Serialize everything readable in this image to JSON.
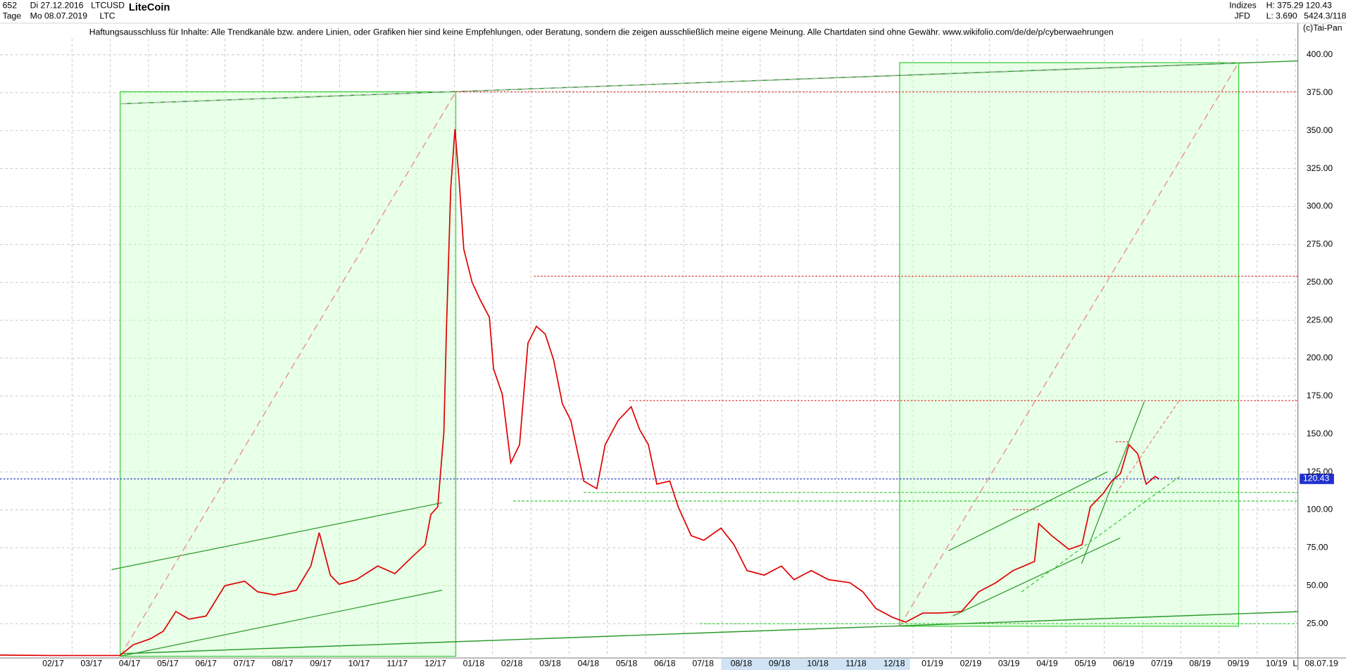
{
  "header": {
    "count": "652",
    "start": "Di 27.12.2016",
    "period": "Tage",
    "end": "Mo 08.07.2019",
    "symbol": "LTCUSD",
    "symbol_short": "LTC",
    "name": "LiteCoin",
    "disclaimer": "Haftungsausschluss für Inhalte: Alle Trendkanäle bzw. andere Linien, oder Grafiken hier sind keine Empfehlungen, oder Beratung, sondern die zeigen ausschließlich meine eigene Meinung. Alle Chartdaten sind ohne Gewähr.  www.wikifolio.com/de/de/p/cyberwaehrungen",
    "market": "Indizes",
    "broker": "JFD",
    "high": "H: 375.29",
    "low": "L: 3.690",
    "last": "120.43",
    "extra": "5424.3/118",
    "copyright": "(c)Tai-Pan",
    "date_label": "08.07.19",
    "scale_mark": "L"
  },
  "chart_data": {
    "type": "line",
    "current_value": 120.43,
    "current_label": "120.43",
    "grid": true,
    "series": [
      {
        "name": "LTCUSD",
        "color": "#e00000",
        "x": [
          0.11,
          1.46,
          2.8,
          3.25,
          3.59,
          4.04,
          4.38,
          4.71,
          5.05,
          5.5,
          5.99,
          6.51,
          6.85,
          7.29,
          7.86,
          8.24,
          8.46,
          8.75,
          8.98,
          9.43,
          9.99,
          10.44,
          10.89,
          11.23,
          11.38,
          11.56,
          11.72,
          11.79,
          11.9,
          12.01,
          12.12,
          12.24,
          12.46,
          12.68,
          12.91,
          13.02,
          13.25,
          13.47,
          13.7,
          13.92,
          14.14,
          14.37,
          14.59,
          14.82,
          15.04,
          15.38,
          15.72,
          15.94,
          16.28,
          16.62,
          16.84,
          17.07,
          17.29,
          17.63,
          17.85,
          18.19,
          18.52,
          18.97,
          19.31,
          19.65,
          20.1,
          20.55,
          20.88,
          21.33,
          21.78,
          22.34,
          22.68,
          23.02,
          23.47,
          23.8,
          24.25,
          24.7,
          25.26,
          25.71,
          26.16,
          26.61,
          27.17,
          27.28,
          27.62,
          28.07,
          28.41,
          28.63,
          28.97,
          29.19,
          29.42,
          29.64,
          29.87,
          30.09,
          30.32,
          30.43
        ],
        "values": [
          4.3,
          4,
          4,
          4,
          11,
          15,
          20,
          33,
          28,
          30,
          50,
          53,
          46,
          44,
          47,
          63,
          85,
          57,
          51,
          54,
          63,
          58,
          69,
          77,
          97,
          102,
          151,
          221,
          312,
          351,
          317,
          272,
          250,
          238,
          227,
          193,
          176,
          131,
          143,
          210,
          221,
          216,
          199,
          170,
          159,
          119,
          114,
          143,
          159,
          168,
          153,
          143,
          117,
          119,
          102,
          83,
          80,
          88,
          77,
          60,
          57,
          63,
          54,
          60,
          54,
          52,
          46,
          35,
          29,
          26,
          32,
          32,
          33,
          46,
          52,
          60,
          66,
          91,
          83,
          74,
          77,
          102,
          111,
          119,
          124,
          143,
          137,
          117,
          122,
          120.43
        ]
      }
    ],
    "xlim": [
      0.11,
      34.06
    ],
    "xticks": [
      {
        "value": 1.5,
        "label": "02/17"
      },
      {
        "value": 2.5,
        "label": "03/17"
      },
      {
        "value": 3.5,
        "label": "04/17"
      },
      {
        "value": 4.5,
        "label": "05/17"
      },
      {
        "value": 5.5,
        "label": "06/17"
      },
      {
        "value": 6.5,
        "label": "07/17"
      },
      {
        "value": 7.5,
        "label": "08/17"
      },
      {
        "value": 8.5,
        "label": "09/17"
      },
      {
        "value": 9.5,
        "label": "10/17"
      },
      {
        "value": 10.5,
        "label": "11/17"
      },
      {
        "value": 11.5,
        "label": "12/17"
      },
      {
        "value": 12.5,
        "label": "01/18"
      },
      {
        "value": 13.5,
        "label": "02/18"
      },
      {
        "value": 14.5,
        "label": "03/18"
      },
      {
        "value": 15.5,
        "label": "04/18"
      },
      {
        "value": 16.5,
        "label": "05/18"
      },
      {
        "value": 17.5,
        "label": "06/18"
      },
      {
        "value": 18.5,
        "label": "07/18"
      },
      {
        "value": 19.5,
        "label": "08/18"
      },
      {
        "value": 20.5,
        "label": "09/18"
      },
      {
        "value": 21.5,
        "label": "10/18"
      },
      {
        "value": 22.5,
        "label": "11/18"
      },
      {
        "value": 23.5,
        "label": "12/18"
      },
      {
        "value": 24.5,
        "label": "01/19"
      },
      {
        "value": 25.5,
        "label": "02/19"
      },
      {
        "value": 26.5,
        "label": "03/19"
      },
      {
        "value": 27.5,
        "label": "04/19"
      },
      {
        "value": 28.5,
        "label": "05/19"
      },
      {
        "value": 29.5,
        "label": "06/19"
      },
      {
        "value": 30.5,
        "label": "07/19"
      },
      {
        "value": 31.5,
        "label": "08/19"
      },
      {
        "value": 32.5,
        "label": "09/19"
      },
      {
        "value": 33.5,
        "label": "10/19"
      }
    ],
    "ylim": [
      3.5,
      410.7
    ],
    "yticks": [
      {
        "value": 25,
        "label": "25.00"
      },
      {
        "value": 50,
        "label": "50.00"
      },
      {
        "value": 75,
        "label": "75.00"
      },
      {
        "value": 100,
        "label": "100.00"
      },
      {
        "value": 125,
        "label": "125.00"
      },
      {
        "value": 150,
        "label": "150.00"
      },
      {
        "value": 175,
        "label": "175.00"
      },
      {
        "value": 200,
        "label": "200.00"
      },
      {
        "value": 225,
        "label": "225.00"
      },
      {
        "value": 250,
        "label": "250.00"
      },
      {
        "value": 275,
        "label": "275.00"
      },
      {
        "value": 300,
        "label": "300.00"
      },
      {
        "value": 325,
        "label": "325.00"
      },
      {
        "value": 350,
        "label": "350.00"
      },
      {
        "value": 375,
        "label": "375.00"
      },
      {
        "value": 400,
        "label": "400.00"
      }
    ]
  }
}
